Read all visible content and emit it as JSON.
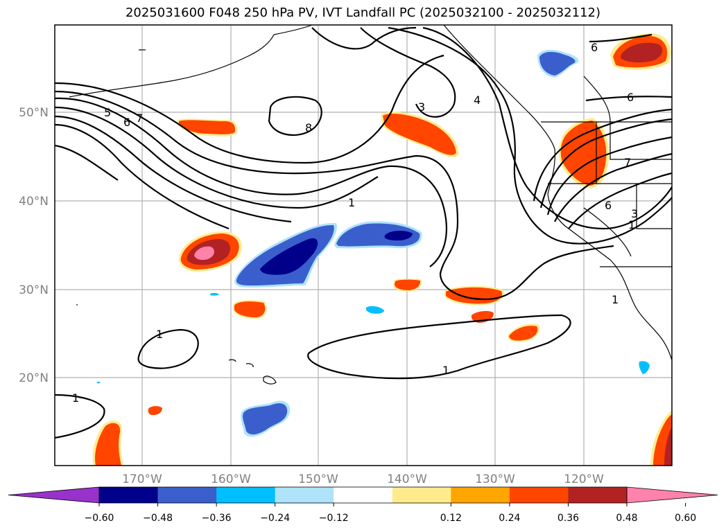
{
  "title": "2025031600 F048 250 hPa PV, IVT Landfall PC (2025032100 - 2025032112)",
  "map": {
    "lon_ticks": [
      "170°W",
      "160°W",
      "150°W",
      "140°W",
      "130°W",
      "120°W"
    ],
    "lat_ticks": [
      "50°N",
      "40°N",
      "30°N",
      "20°N"
    ],
    "gridlines": true,
    "contour_labels": [
      "5",
      "6",
      "7",
      "8",
      "3",
      "4",
      "1",
      "1",
      "1",
      "1",
      "1",
      "6",
      "6",
      "7",
      "6",
      "3",
      "1"
    ]
  },
  "colorbar": {
    "tick_labels": [
      "−0.60",
      "−0.48",
      "−0.36",
      "−0.24",
      "−0.12",
      "0.12",
      "0.24",
      "0.36",
      "0.48",
      "0.60"
    ],
    "colors": [
      "#9932cc",
      "#00008b",
      "#3a5fcd",
      "#00bfff",
      "#aee3fa",
      "#ffffff",
      "#ffeb8c",
      "#ffa500",
      "#ff4500",
      "#b22222",
      "#ff82ab"
    ],
    "extend": "both"
  },
  "palette": {
    "deep_blue": "#00008b",
    "mid_blue": "#3a5fcd",
    "sky_blue": "#00bfff",
    "light_blue": "#aee3fa",
    "yellow": "#ffeb8c",
    "orange": "#ffa500",
    "red_orange": "#ff4500",
    "dark_red": "#b22222",
    "pink": "#ff82ab",
    "grid": "#b0b0b0"
  }
}
